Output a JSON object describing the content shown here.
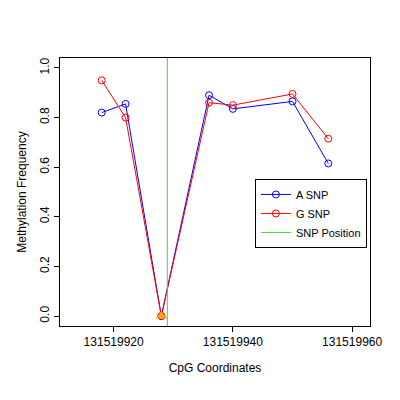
{
  "chart_data": {
    "type": "line",
    "x_label": "CpG Coordinates",
    "y_label": "Methylation Frequency",
    "xlim": [
      131519911,
      131519963
    ],
    "ylim": [
      -0.04,
      1.04
    ],
    "xticks": [
      131519920,
      131519940,
      131519960
    ],
    "yticks": [
      {
        "value": 0,
        "label": "0.0"
      },
      0.2,
      0.4,
      0.6,
      0.8,
      {
        "value": 1,
        "label": "1.0"
      }
    ],
    "grid": false,
    "legend": "right",
    "series": [
      {
        "name": "A SNP",
        "color": "#0000ff",
        "marker": "circle-open",
        "line_style": "solid",
        "x": [
          131519918,
          131519922,
          131519928,
          131519936,
          131519940,
          131519950,
          131519956
        ],
        "values": [
          0.82,
          0.855,
          0.0,
          0.89,
          0.835,
          0.865,
          0.615
        ]
      },
      {
        "name": "G SNP",
        "color": "#ff0000",
        "marker": "circle-open",
        "line_style": "solid",
        "x": [
          131519918,
          131519922,
          131519928,
          131519936,
          131519940,
          131519950,
          131519956
        ],
        "values": [
          0.95,
          0.8,
          0.0,
          0.86,
          0.85,
          0.895,
          0.715
        ]
      },
      {
        "name": "SNP Position",
        "color": "#33dd33",
        "type": "vline",
        "line_style": "solid",
        "x": [
          131519929
        ]
      }
    ],
    "snp_marker": {
      "x": 131519928,
      "y": 0,
      "color": "#ffa500",
      "marker": "triangle-up"
    }
  }
}
